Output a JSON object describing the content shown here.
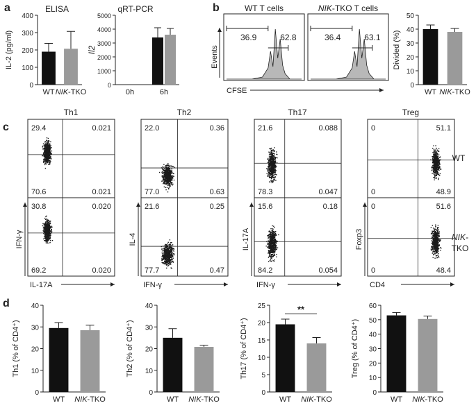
{
  "panels": {
    "a": "a",
    "b": "b",
    "c": "c",
    "d": "d"
  },
  "groups": [
    "WT",
    "NIK-TKO"
  ],
  "colors": {
    "wt": "#111111",
    "ko": "#9a9a9a",
    "ink": "#222222",
    "cloud": "#1a1a1a",
    "hist": "#b8b8b8"
  },
  "panel_a": {
    "elisa": {
      "title": "ELISA",
      "ylabel": "IL-2 (pg/ml)",
      "ticks": [
        "0",
        "100",
        "200",
        "300",
        "400"
      ]
    },
    "qpcr": {
      "title": "qRT-PCR",
      "ylabel": "Il2",
      "ticks": [
        "0",
        "1000",
        "2000",
        "3000",
        "4000",
        "5000"
      ],
      "xcats": [
        "0h",
        "6h"
      ]
    }
  },
  "panel_b": {
    "wt_title": "WT T cells",
    "ko_title": "NIK-TKO T cells",
    "ylabel": "Events",
    "xlabel": "CFSE",
    "wt_gates": [
      "36.9",
      "62.8"
    ],
    "ko_gates": [
      "36.4",
      "63.1"
    ],
    "bar_ylabel": "Divided (%)",
    "bar_ticks": [
      "0",
      "10",
      "20",
      "30",
      "40",
      "50"
    ]
  },
  "panel_c": {
    "titles": [
      "Th1",
      "Th2",
      "Th17",
      "Treg"
    ],
    "row_labels": {
      "wt": "WT",
      "ko_line1": "NIK-",
      "ko_line2": "TKO"
    },
    "ylabels": [
      "IFN-γ",
      "IL-4",
      "IL-17A",
      "Foxp3"
    ],
    "xlabels": [
      "IL-17A",
      "IFN-γ",
      "IFN-γ",
      "CD4"
    ],
    "quadrants": [
      [
        [
          "29.4",
          "0.021",
          "70.6",
          "0.021"
        ],
        [
          "30.8",
          "0.020",
          "69.2",
          "0.020"
        ]
      ],
      [
        [
          "22.0",
          "0.36",
          "77.0",
          "0.63"
        ],
        [
          "21.6",
          "0.25",
          "77.7",
          "0.47"
        ]
      ],
      [
        [
          "21.6",
          "0.088",
          "78.3",
          "0.047"
        ],
        [
          "15.6",
          "0.18",
          "84.2",
          "0.054"
        ]
      ],
      [
        [
          "0",
          "51.1",
          "0",
          "48.9"
        ],
        [
          "0",
          "51.6",
          "0",
          "48.4"
        ]
      ]
    ]
  },
  "panel_d": {
    "ylabels": [
      "Th1 (% of CD4⁺)",
      "Th2 (% of CD4⁺)",
      "Th17 (% of CD4⁺)",
      "Treg (% of CD4⁺)"
    ],
    "ticks": [
      [
        "0",
        "10",
        "20",
        "30",
        "40"
      ],
      [
        "0",
        "10",
        "20",
        "30",
        "40"
      ],
      [
        "0",
        "5",
        "10",
        "15",
        "20",
        "25"
      ],
      [
        "0",
        "10",
        "20",
        "30",
        "40",
        "50",
        "60"
      ]
    ],
    "significance": "**"
  },
  "chart_data": [
    {
      "type": "bar",
      "title": "ELISA",
      "ylabel": "IL-2 (pg/ml)",
      "categories": [
        "WT",
        "NIK-TKO"
      ],
      "values": [
        190,
        207
      ],
      "errors": [
        48,
        100
      ],
      "ylim": [
        0,
        400
      ]
    },
    {
      "type": "bar",
      "title": "qRT-PCR",
      "ylabel": "Il2",
      "categories": [
        "0h",
        "6h"
      ],
      "series": [
        {
          "name": "WT",
          "values": [
            0,
            3400
          ],
          "errors": [
            0,
            700
          ]
        },
        {
          "name": "NIK-TKO",
          "values": [
            0,
            3600
          ],
          "errors": [
            0,
            450
          ]
        }
      ],
      "ylim": [
        0,
        5000
      ]
    },
    {
      "type": "bar",
      "title": "",
      "ylabel": "Divided (%)",
      "categories": [
        "WT",
        "NIK-TKO"
      ],
      "values": [
        40,
        38
      ],
      "errors": [
        3,
        2.5
      ],
      "ylim": [
        0,
        50
      ]
    },
    {
      "type": "bar",
      "title": "",
      "ylabel": "Th1 (% of CD4+)",
      "categories": [
        "WT",
        "NIK-TKO"
      ],
      "values": [
        29.5,
        28.5
      ],
      "errors": [
        2.5,
        2.3
      ],
      "ylim": [
        0,
        40
      ]
    },
    {
      "type": "bar",
      "title": "",
      "ylabel": "Th2 (% of CD4+)",
      "categories": [
        "WT",
        "NIK-TKO"
      ],
      "values": [
        25,
        20.8
      ],
      "errors": [
        4.2,
        0.8
      ],
      "ylim": [
        0,
        40
      ]
    },
    {
      "type": "bar",
      "title": "",
      "ylabel": "Th17 (% of CD4+)",
      "categories": [
        "WT",
        "NIK-TKO"
      ],
      "values": [
        19.5,
        14
      ],
      "errors": [
        1.5,
        1.7
      ],
      "ylim": [
        0,
        25
      ],
      "annotation": "**"
    },
    {
      "type": "bar",
      "title": "",
      "ylabel": "Treg (% of CD4+)",
      "categories": [
        "WT",
        "NIK-TKO"
      ],
      "values": [
        53,
        50.5
      ],
      "errors": [
        2,
        2
      ],
      "ylim": [
        0,
        60
      ]
    }
  ]
}
